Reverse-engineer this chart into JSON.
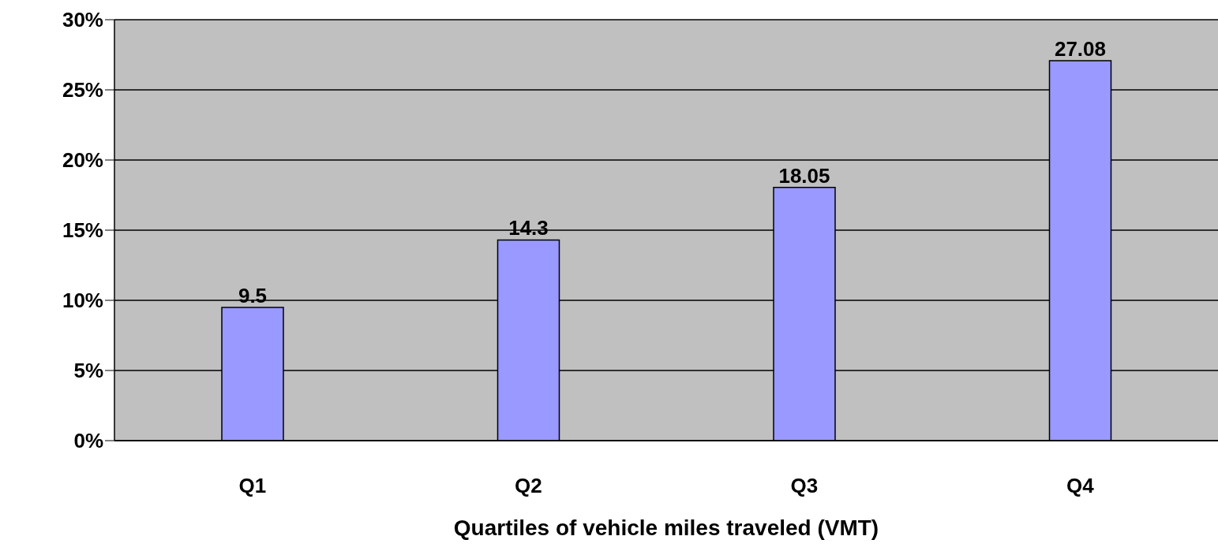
{
  "chart_data": {
    "type": "bar",
    "xlabel": "Quartiles of vehicle miles traveled (VMT)",
    "categories": [
      "Q1",
      "Q2",
      "Q3",
      "Q4"
    ],
    "values": [
      9.5,
      14.3,
      18.05,
      27.08
    ],
    "color": "#9999ff",
    "ylim": [
      0,
      30
    ],
    "yticks": [
      {
        "value": 0,
        "label": "0%"
      },
      {
        "value": 5,
        "label": "5%"
      },
      {
        "value": 10,
        "label": "10%"
      },
      {
        "value": 15,
        "label": "15%"
      },
      {
        "value": 20,
        "label": "20%"
      },
      {
        "value": 25,
        "label": "25%"
      },
      {
        "value": 30,
        "label": "30%"
      }
    ],
    "grid": "y",
    "data_labels": true,
    "legend": false
  }
}
